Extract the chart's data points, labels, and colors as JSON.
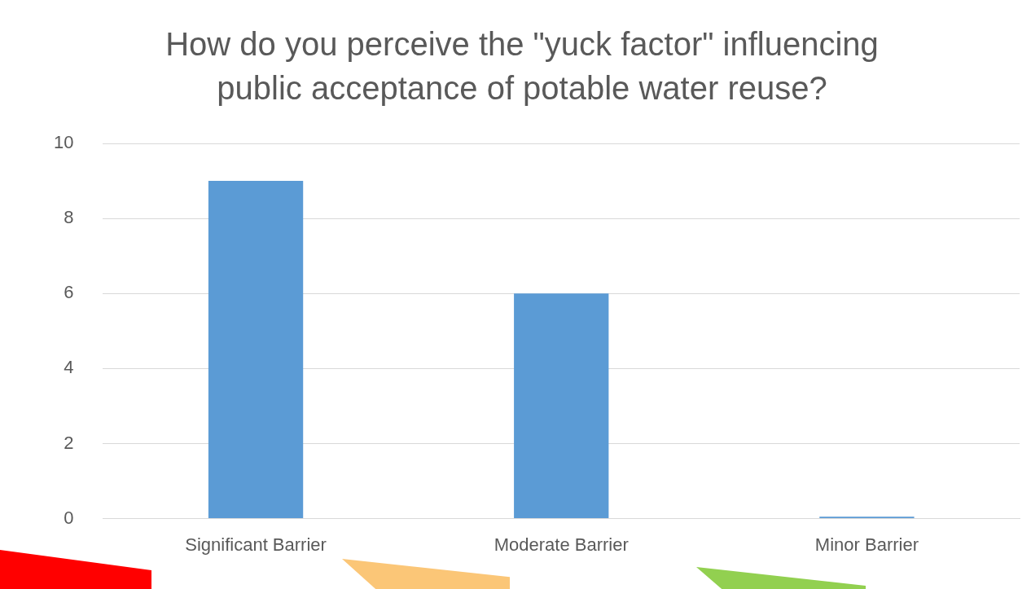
{
  "chart_data": {
    "type": "bar",
    "title": "How do you perceive the \"yuck factor\" influencing public acceptance of potable water reuse?",
    "categories": [
      "Significant Barrier",
      "Moderate Barrier",
      "Minor Barrier"
    ],
    "values": [
      9,
      6,
      0.05
    ],
    "color": "#5b9bd5",
    "ylim": [
      0,
      10
    ],
    "yticks": [
      0,
      2,
      4,
      6,
      8,
      10
    ],
    "grid": "y"
  }
}
